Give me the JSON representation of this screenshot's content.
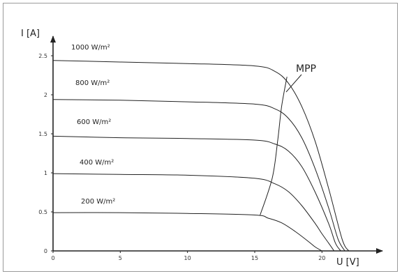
{
  "chart_data": {
    "type": "line",
    "title": "",
    "xlabel": "U [V]",
    "ylabel": "I [A]",
    "xlim": [
      0,
      24.5
    ],
    "ylim": [
      0,
      2.75
    ],
    "x_ticks": [
      {
        "value": 0,
        "label": "0"
      },
      {
        "value": 5,
        "label": "5"
      },
      {
        "value": 10,
        "label": "10"
      },
      {
        "value": 15,
        "label": "15"
      },
      {
        "value": 20,
        "label": "20"
      }
    ],
    "y_ticks": [
      {
        "value": 0,
        "label": "0"
      },
      {
        "value": 0.5,
        "label": "0.5"
      },
      {
        "value": 1,
        "label": "1"
      },
      {
        "value": 1.5,
        "label": "1.5"
      },
      {
        "value": 2,
        "label": "2"
      },
      {
        "value": 2.5,
        "label": "2.5"
      }
    ],
    "series": [
      {
        "name": "1000 W/m²",
        "x": [
          0,
          5,
          10,
          15,
          16.5,
          17.5,
          18.5,
          19.5,
          20.5,
          21.5,
          22.0
        ],
        "y": [
          2.44,
          2.42,
          2.4,
          2.37,
          2.3,
          2.15,
          1.85,
          1.4,
          0.8,
          0.15,
          0
        ]
      },
      {
        "name": "800 W/m²",
        "x": [
          0,
          5,
          10,
          15,
          16.5,
          17.5,
          18.5,
          19.5,
          20.5,
          21.2,
          21.7
        ],
        "y": [
          1.94,
          1.93,
          1.91,
          1.88,
          1.82,
          1.7,
          1.45,
          1.05,
          0.55,
          0.15,
          0
        ]
      },
      {
        "name": "600 W/m²",
        "x": [
          0,
          5,
          10,
          15,
          16.5,
          17.5,
          18.5,
          19.5,
          20.5,
          21.0,
          21.4
        ],
        "y": [
          1.47,
          1.45,
          1.44,
          1.42,
          1.37,
          1.28,
          1.08,
          0.75,
          0.35,
          0.1,
          0
        ]
      },
      {
        "name": "400 W/m²",
        "x": [
          0,
          5,
          10,
          15,
          16.5,
          17.5,
          18.5,
          19.5,
          20.0,
          20.5,
          20.9
        ],
        "y": [
          0.99,
          0.98,
          0.97,
          0.93,
          0.86,
          0.76,
          0.58,
          0.35,
          0.22,
          0.1,
          0
        ]
      },
      {
        "name": "200 W/m²",
        "x": [
          0,
          5,
          10,
          15,
          16.0,
          17.0,
          18.0,
          19.0,
          19.5,
          20.0
        ],
        "y": [
          0.49,
          0.49,
          0.48,
          0.46,
          0.42,
          0.36,
          0.25,
          0.12,
          0.05,
          0
        ]
      }
    ],
    "mpp_curve": {
      "name": "MPP",
      "x": [
        15.4,
        16.3,
        16.7,
        17.0,
        17.4
      ],
      "y": [
        0.46,
        0.93,
        1.4,
        1.85,
        2.23
      ]
    },
    "annotations": [
      {
        "text": "MPP"
      }
    ],
    "grid": false,
    "legend": "none"
  }
}
